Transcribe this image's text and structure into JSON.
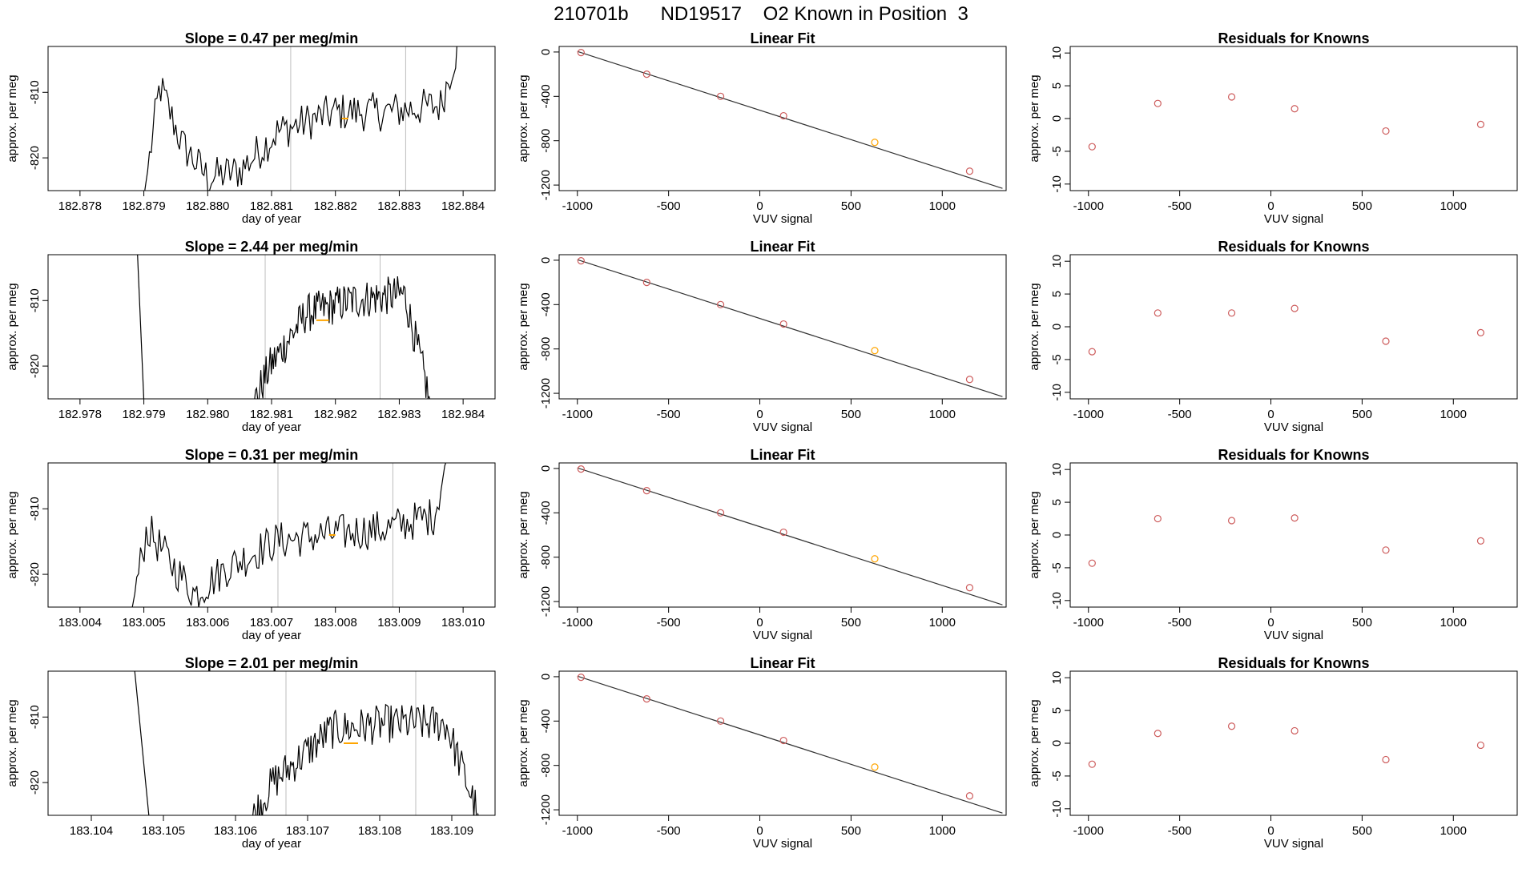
{
  "header": {
    "title": "210701b      ND19517    O2 Known in Position  3"
  },
  "colors": {
    "trace": "#000000",
    "fit_line": "#333333",
    "point": "#cd5c5c",
    "highlight": "#ffa500",
    "cycle_line": "#bebebe",
    "axis": "#000000"
  },
  "chart_data": [
    {
      "type": "line",
      "title": "Slope =  0.47  per meg/min",
      "xlabel": "day of year",
      "ylabel": "approx. per meg",
      "xlim": [
        182.8775,
        182.8845
      ],
      "ylim": [
        -825,
        -803
      ],
      "xticks": [
        182.878,
        182.879,
        182.88,
        182.881,
        182.882,
        182.883,
        182.884
      ],
      "xtick_labels": [
        "182.878",
        "182.879",
        "182.880",
        "182.881",
        "182.882",
        "182.883",
        "182.884"
      ],
      "yticks": [
        -810,
        -820
      ],
      "ytick_labels": [
        "-810",
        "-820"
      ],
      "cycle_lines": [
        182.8813,
        182.8831
      ],
      "highlight": [
        182.8821,
        182.8822,
        -814
      ],
      "trace": {
        "x_start": 182.879,
        "x_end": 182.884,
        "start_y": -826,
        "plateau": -809,
        "dip": [
          [
            0.05,
            -809
          ],
          [
            0.12,
            -818
          ],
          [
            0.2,
            -823
          ],
          [
            0.3,
            -822
          ],
          [
            0.42,
            -816
          ],
          [
            0.6,
            -813
          ],
          [
            0.75,
            -813
          ],
          [
            0.93,
            -812
          ]
        ],
        "noise": 3,
        "end_y": -800
      }
    },
    {
      "type": "line",
      "title": "Slope =  2.44  per meg/min",
      "xlabel": "day of year",
      "ylabel": "approx. per meg",
      "xlim": [
        182.9775,
        182.9845
      ],
      "ylim": [
        -825,
        -803
      ],
      "xticks": [
        182.978,
        182.979,
        182.98,
        182.981,
        182.982,
        182.983,
        182.984
      ],
      "xtick_labels": [
        "182.978",
        "182.979",
        "182.980",
        "182.981",
        "182.982",
        "182.983",
        "182.984"
      ],
      "yticks": [
        -810,
        -820
      ],
      "ytick_labels": [
        "-810",
        "-820"
      ],
      "cycle_lines": [
        182.9809,
        182.9827
      ],
      "highlight": [
        182.9817,
        182.9819,
        -813
      ],
      "trace": {
        "x_start": 182.9807,
        "x_end": 182.9835,
        "start_y": -826,
        "plateau": -810,
        "dip": [
          [
            0.1,
            -820
          ],
          [
            0.3,
            -812
          ],
          [
            0.55,
            -810
          ],
          [
            0.85,
            -809
          ]
        ],
        "noise": 3,
        "end_y": -826,
        "drop_line": [
          182.9789,
          182.979
        ]
      }
    },
    {
      "type": "line",
      "title": "Slope =  0.31  per meg/min",
      "xlabel": "day of year",
      "ylabel": "approx. per meg",
      "xlim": [
        183.0035,
        183.0105
      ],
      "ylim": [
        -825,
        -803
      ],
      "xticks": [
        183.004,
        183.005,
        183.006,
        183.007,
        183.008,
        183.009,
        183.01
      ],
      "xtick_labels": [
        "183.004",
        "183.005",
        "183.006",
        "183.007",
        "183.008",
        "183.009",
        "183.010"
      ],
      "yticks": [
        -810,
        -820
      ],
      "ytick_labels": [
        "-810",
        "-820"
      ],
      "cycle_lines": [
        183.0071,
        183.0089
      ],
      "highlight": [
        183.0079,
        183.008,
        -814
      ],
      "trace": {
        "x_start": 183.0048,
        "x_end": 183.0098,
        "start_y": -826,
        "plateau": -809,
        "dip": [
          [
            0.05,
            -813
          ],
          [
            0.12,
            -818
          ],
          [
            0.2,
            -823
          ],
          [
            0.3,
            -819
          ],
          [
            0.45,
            -815
          ],
          [
            0.6,
            -814
          ],
          [
            0.8,
            -813
          ],
          [
            0.95,
            -811
          ]
        ],
        "noise": 3,
        "end_y": -800
      }
    },
    {
      "type": "line",
      "title": "Slope =  2.01  per meg/min",
      "xlabel": "day of year",
      "ylabel": "approx. per meg",
      "xlim": [
        183.1034,
        183.1096
      ],
      "ylim": [
        -825,
        -803
      ],
      "xticks": [
        183.104,
        183.105,
        183.106,
        183.107,
        183.108,
        183.109
      ],
      "xtick_labels": [
        "183.104",
        "183.105",
        "183.106",
        "183.107",
        "183.108",
        "183.109"
      ],
      "yticks": [
        -810,
        -820
      ],
      "ytick_labels": [
        "-810",
        "-820"
      ],
      "cycle_lines": [
        183.1067,
        183.1085
      ],
      "highlight": [
        183.1075,
        183.1077,
        -814
      ],
      "trace": {
        "x_start": 183.1062,
        "x_end": 183.1094,
        "start_y": -826,
        "plateau": -810,
        "dip": [
          [
            0.1,
            -820
          ],
          [
            0.35,
            -812
          ],
          [
            0.6,
            -811
          ],
          [
            0.85,
            -811
          ]
        ],
        "noise": 3,
        "end_y": -826,
        "drop_line": [
          183.1046,
          183.1048
        ]
      }
    },
    {
      "type": "scatter",
      "title": "Linear Fit",
      "xlabel": "VUV signal",
      "ylabel": "approx. per meg",
      "xlim": [
        -1100,
        1350
      ],
      "ylim": [
        -1250,
        50
      ],
      "xticks": [
        -1000,
        -500,
        0,
        500,
        1000
      ],
      "xtick_labels": [
        "-1000",
        "-500",
        "0",
        "500",
        "1000"
      ],
      "yticks": [
        0,
        -400,
        -800,
        -1200
      ],
      "ytick_labels": [
        "0",
        "-400",
        "-800",
        "-1200"
      ],
      "x": [
        -980,
        -620,
        -215,
        130,
        630,
        1150
      ],
      "y": [
        -5,
        -200,
        -400,
        -575,
        -815,
        -1075
      ],
      "highlight_index": 4,
      "fit": {
        "x": [
          -1000,
          1330
        ],
        "y": [
          5,
          -1230
        ]
      }
    },
    {
      "type": "scatter",
      "title": "Linear Fit",
      "xlabel": "VUV signal",
      "ylabel": "approx. per meg",
      "xlim": [
        -1100,
        1350
      ],
      "ylim": [
        -1250,
        50
      ],
      "xticks": [
        -1000,
        -500,
        0,
        500,
        1000
      ],
      "xtick_labels": [
        "-1000",
        "-500",
        "0",
        "500",
        "1000"
      ],
      "yticks": [
        0,
        -400,
        -800,
        -1200
      ],
      "ytick_labels": [
        "0",
        "-400",
        "-800",
        "-1200"
      ],
      "x": [
        -980,
        -620,
        -215,
        130,
        630,
        1150
      ],
      "y": [
        -5,
        -200,
        -400,
        -575,
        -815,
        -1075
      ],
      "highlight_index": 4,
      "fit": {
        "x": [
          -1000,
          1330
        ],
        "y": [
          5,
          -1230
        ]
      }
    },
    {
      "type": "scatter",
      "title": "Linear Fit",
      "xlabel": "VUV signal",
      "ylabel": "approx. per meg",
      "xlim": [
        -1100,
        1350
      ],
      "ylim": [
        -1250,
        50
      ],
      "xticks": [
        -1000,
        -500,
        0,
        500,
        1000
      ],
      "xtick_labels": [
        "-1000",
        "-500",
        "0",
        "500",
        "1000"
      ],
      "yticks": [
        0,
        -400,
        -800,
        -1200
      ],
      "ytick_labels": [
        "0",
        "-400",
        "-800",
        "-1200"
      ],
      "x": [
        -980,
        -620,
        -215,
        130,
        630,
        1150
      ],
      "y": [
        -5,
        -200,
        -400,
        -575,
        -815,
        -1075
      ],
      "highlight_index": 4,
      "fit": {
        "x": [
          -1000,
          1330
        ],
        "y": [
          5,
          -1230
        ]
      }
    },
    {
      "type": "scatter",
      "title": "Linear Fit",
      "xlabel": "VUV signal",
      "ylabel": "approx. per meg",
      "xlim": [
        -1100,
        1350
      ],
      "ylim": [
        -1250,
        50
      ],
      "xticks": [
        -1000,
        -500,
        0,
        500,
        1000
      ],
      "xtick_labels": [
        "-1000",
        "-500",
        "0",
        "500",
        "1000"
      ],
      "yticks": [
        0,
        -400,
        -800,
        -1200
      ],
      "ytick_labels": [
        "0",
        "-400",
        "-800",
        "-1200"
      ],
      "x": [
        -980,
        -620,
        -215,
        130,
        630,
        1150
      ],
      "y": [
        -5,
        -200,
        -400,
        -575,
        -815,
        -1075
      ],
      "highlight_index": 4,
      "fit": {
        "x": [
          -1000,
          1330
        ],
        "y": [
          5,
          -1230
        ]
      }
    },
    {
      "type": "scatter",
      "title": "Residuals for Knowns",
      "xlabel": "VUV signal",
      "ylabel": "approx. per meg",
      "xlim": [
        -1100,
        1350
      ],
      "ylim": [
        -11,
        11
      ],
      "xticks": [
        -1000,
        -500,
        0,
        500,
        1000
      ],
      "xtick_labels": [
        "-1000",
        "-500",
        "0",
        "500",
        "1000"
      ],
      "yticks": [
        10,
        5,
        0,
        -5,
        -10
      ],
      "ytick_labels": [
        "10",
        "5",
        "0",
        "-5",
        "-10"
      ],
      "x": [
        -980,
        -620,
        -215,
        130,
        630,
        1150
      ],
      "y": [
        -4.3,
        2.3,
        3.3,
        1.5,
        -1.9,
        -0.9
      ]
    },
    {
      "type": "scatter",
      "title": "Residuals for Knowns",
      "xlabel": "VUV signal",
      "ylabel": "approx. per meg",
      "xlim": [
        -1100,
        1350
      ],
      "ylim": [
        -11,
        11
      ],
      "xticks": [
        -1000,
        -500,
        0,
        500,
        1000
      ],
      "xtick_labels": [
        "-1000",
        "-500",
        "0",
        "500",
        "1000"
      ],
      "yticks": [
        10,
        5,
        0,
        -5,
        -10
      ],
      "ytick_labels": [
        "10",
        "5",
        "0",
        "-5",
        "-10"
      ],
      "x": [
        -980,
        -620,
        -215,
        130,
        630,
        1150
      ],
      "y": [
        -3.8,
        2.1,
        2.1,
        2.8,
        -2.2,
        -0.9
      ]
    },
    {
      "type": "scatter",
      "title": "Residuals for Knowns",
      "xlabel": "VUV signal",
      "ylabel": "approx. per meg",
      "xlim": [
        -1100,
        1350
      ],
      "ylim": [
        -11,
        11
      ],
      "xticks": [
        -1000,
        -500,
        0,
        500,
        1000
      ],
      "xtick_labels": [
        "-1000",
        "-500",
        "0",
        "500",
        "1000"
      ],
      "yticks": [
        10,
        5,
        0,
        -5,
        -10
      ],
      "ytick_labels": [
        "10",
        "5",
        "0",
        "-5",
        "-10"
      ],
      "x": [
        -980,
        -620,
        -215,
        130,
        630,
        1150
      ],
      "y": [
        -4.3,
        2.5,
        2.2,
        2.6,
        -2.3,
        -0.9
      ]
    },
    {
      "type": "scatter",
      "title": "Residuals for Knowns",
      "xlabel": "VUV signal",
      "ylabel": "approx. per meg",
      "xlim": [
        -1100,
        1350
      ],
      "ylim": [
        -11,
        11
      ],
      "xticks": [
        -1000,
        -500,
        0,
        500,
        1000
      ],
      "xtick_labels": [
        "-1000",
        "-500",
        "0",
        "500",
        "1000"
      ],
      "yticks": [
        10,
        5,
        0,
        -5,
        -10
      ],
      "ytick_labels": [
        "10",
        "5",
        "0",
        "-5",
        "-10"
      ],
      "x": [
        -980,
        -620,
        -215,
        130,
        630,
        1150
      ],
      "y": [
        -3.2,
        1.5,
        2.6,
        1.9,
        -2.5,
        -0.3
      ]
    }
  ]
}
